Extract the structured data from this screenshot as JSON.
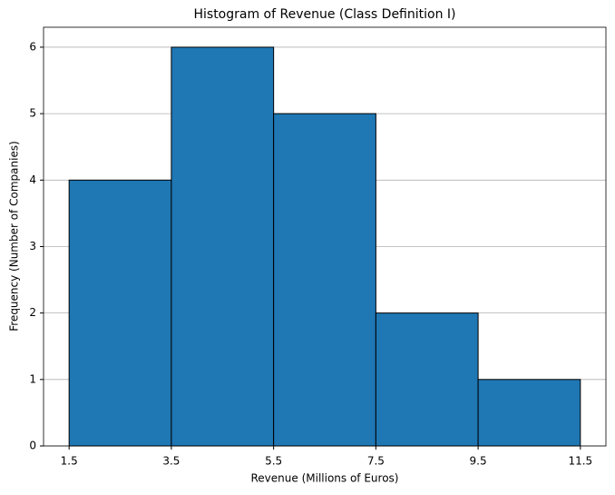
{
  "chart_data": {
    "type": "histogram",
    "title": "Histogram of Revenue (Class Definition I)",
    "x_label": "Revenue (Millions of Euros)",
    "y_label": "Frequency (Number of Companies)",
    "bins": [
      1.5,
      3.5,
      5.5,
      7.5,
      9.5,
      11.5
    ],
    "values": [
      4,
      6,
      5,
      2,
      1
    ],
    "color": "#1f77b4",
    "edgecolor": "#000000",
    "xlim": [
      1,
      12
    ],
    "xticks": [
      1.5,
      3.5,
      5.5,
      7.5,
      9.5,
      11.5
    ],
    "ylim": [
      0,
      6.3
    ],
    "yticks": [
      0,
      1,
      2,
      3,
      4,
      5,
      6
    ],
    "grid": "y"
  }
}
